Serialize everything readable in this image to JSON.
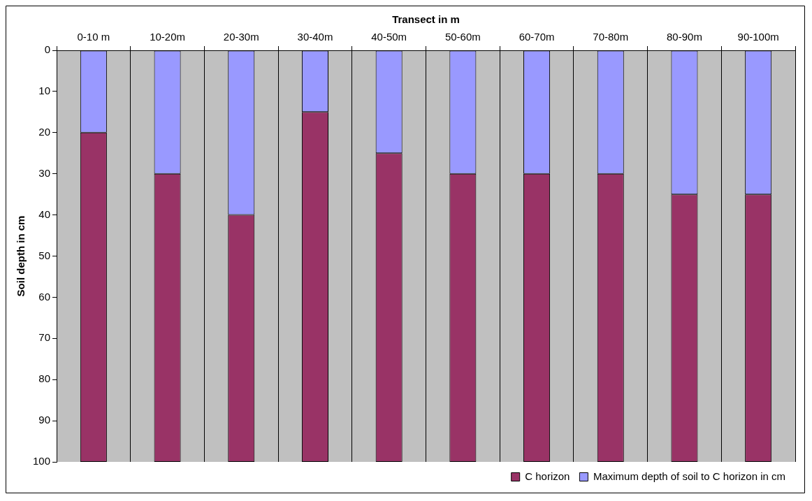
{
  "chart_data": {
    "type": "bar",
    "xlabel": "Transect in m",
    "ylabel": "Soil depth in cm",
    "categories": [
      "0-10 m",
      "10-20m",
      "20-30m",
      "30-40m",
      "40-50m",
      "50-60m",
      "60-70m",
      "70-80m",
      "80-90m",
      "90-100m"
    ],
    "series": [
      {
        "name": "Maximum depth of soil to C horizon in cm",
        "color": "#9999ff",
        "values": [
          20,
          30,
          40,
          15,
          25,
          30,
          30,
          30,
          35,
          35
        ]
      },
      {
        "name": "C horizon",
        "color": "#993366",
        "values": [
          80,
          70,
          60,
          85,
          75,
          70,
          70,
          70,
          65,
          65
        ]
      }
    ],
    "stacked": true,
    "ylim": [
      100,
      0
    ],
    "yticks": [
      0,
      10,
      20,
      30,
      40,
      50,
      60,
      70,
      80,
      90,
      100
    ],
    "grid": "x",
    "legend": "bottom right"
  }
}
